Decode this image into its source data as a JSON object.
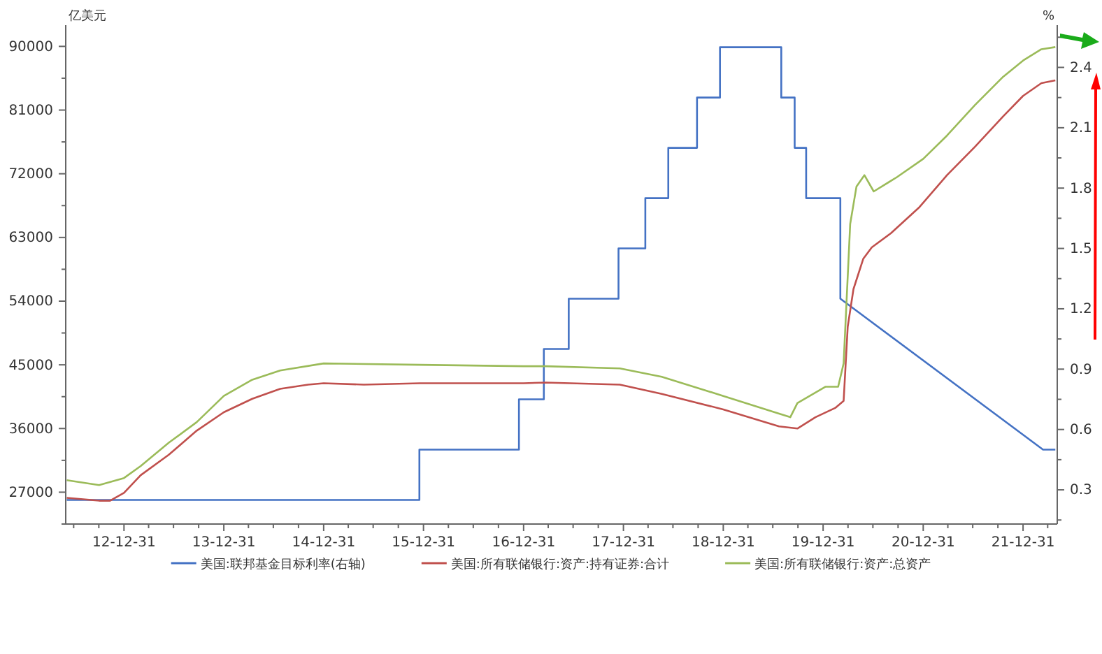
{
  "chart_data": {
    "type": "line",
    "ylabel": "亿美元",
    "y2label": "%",
    "legend": "bottom",
    "grid": false,
    "xlim": [
      "2012-06-01",
      "2022-05-05"
    ],
    "ylim": [
      22500,
      93000
    ],
    "y2lim": [
      0.13,
      2.61
    ],
    "xticks": [
      {
        "value": "2012-06-30",
        "label": null
      },
      {
        "value": "2012-09-30",
        "label": null
      },
      {
        "value": "2012-12-31",
        "label": "12-12-31"
      },
      {
        "value": "2013-03-31",
        "label": null
      },
      {
        "value": "2013-06-30",
        "label": null
      },
      {
        "value": "2013-09-30",
        "label": null
      },
      {
        "value": "2013-12-31",
        "label": "13-12-31"
      },
      {
        "value": "2014-03-31",
        "label": null
      },
      {
        "value": "2014-06-30",
        "label": null
      },
      {
        "value": "2014-09-30",
        "label": null
      },
      {
        "value": "2014-12-31",
        "label": "14-12-31"
      },
      {
        "value": "2015-03-31",
        "label": null
      },
      {
        "value": "2015-06-30",
        "label": null
      },
      {
        "value": "2015-09-30",
        "label": null
      },
      {
        "value": "2015-12-31",
        "label": "15-12-31"
      },
      {
        "value": "2016-03-31",
        "label": null
      },
      {
        "value": "2016-06-30",
        "label": null
      },
      {
        "value": "2016-09-30",
        "label": null
      },
      {
        "value": "2016-12-31",
        "label": "16-12-31"
      },
      {
        "value": "2017-03-31",
        "label": null
      },
      {
        "value": "2017-06-30",
        "label": null
      },
      {
        "value": "2017-09-30",
        "label": null
      },
      {
        "value": "2017-12-31",
        "label": "17-12-31"
      },
      {
        "value": "2018-03-31",
        "label": null
      },
      {
        "value": "2018-06-30",
        "label": null
      },
      {
        "value": "2018-09-30",
        "label": null
      },
      {
        "value": "2018-12-31",
        "label": "18-12-31"
      },
      {
        "value": "2019-03-31",
        "label": null
      },
      {
        "value": "2019-06-30",
        "label": null
      },
      {
        "value": "2019-09-30",
        "label": null
      },
      {
        "value": "2019-12-31",
        "label": "19-12-31"
      },
      {
        "value": "2020-03-31",
        "label": null
      },
      {
        "value": "2020-06-30",
        "label": null
      },
      {
        "value": "2020-09-30",
        "label": null
      },
      {
        "value": "2020-12-31",
        "label": "20-12-31"
      },
      {
        "value": "2021-03-31",
        "label": null
      },
      {
        "value": "2021-06-30",
        "label": null
      },
      {
        "value": "2021-09-30",
        "label": null
      },
      {
        "value": "2021-12-31",
        "label": "21-12-31"
      },
      {
        "value": "2022-03-31",
        "label": null
      }
    ],
    "yticks": [
      {
        "value": 22500,
        "label": null
      },
      27000,
      {
        "value": 31500,
        "label": null
      },
      36000,
      {
        "value": 40500,
        "label": null
      },
      45000,
      {
        "value": 49500,
        "label": null
      },
      54000,
      {
        "value": 58500,
        "label": null
      },
      63000,
      {
        "value": 67500,
        "label": null
      },
      72000,
      {
        "value": 76500,
        "label": null
      },
      81000,
      {
        "value": 85500,
        "label": null
      },
      90000
    ],
    "y2ticks": [
      {
        "value": 0.15,
        "label": null
      },
      0.3,
      {
        "value": 0.45,
        "label": null
      },
      0.6,
      {
        "value": 0.75,
        "label": null
      },
      0.9,
      {
        "value": 1.05,
        "label": null
      },
      1.2,
      {
        "value": 1.35,
        "label": null
      },
      1.5,
      {
        "value": 1.65,
        "label": null
      },
      1.8,
      {
        "value": 1.95,
        "label": null
      },
      2.1,
      {
        "value": 2.25,
        "label": null
      },
      2.4,
      {
        "value": 2.55,
        "label": null
      }
    ],
    "series": [
      {
        "name": "美国:联邦基金目标利率(右轴)",
        "color": "#4472c4",
        "axis": "y2",
        "x": [
          "2012-06-05",
          "2015-12-16",
          "2015-12-16",
          "2016-12-14",
          "2016-12-14",
          "2017-03-15",
          "2017-03-15",
          "2017-06-14",
          "2017-06-14",
          "2017-12-13",
          "2017-12-13",
          "2018-03-21",
          "2018-03-21",
          "2018-06-13",
          "2018-06-13",
          "2018-09-26",
          "2018-09-26",
          "2018-12-19",
          "2018-12-19",
          "2019-07-31",
          "2019-07-31",
          "2019-09-18",
          "2019-09-18",
          "2019-10-30",
          "2019-10-30",
          "2020-03-03",
          "2020-03-03",
          "2022-03-14",
          "2022-04-28"
        ],
        "values": [
          0.25,
          0.25,
          0.5,
          0.5,
          0.75,
          0.75,
          1.0,
          1.0,
          1.25,
          1.25,
          1.5,
          1.5,
          1.75,
          1.75,
          2.0,
          2.0,
          2.25,
          2.25,
          2.5,
          2.5,
          2.25,
          2.25,
          2.0,
          2.0,
          1.75,
          1.75,
          1.25,
          0.5,
          0.5
        ]
      },
      {
        "name": "美国:所有联储银行:资产:持有证券:合计",
        "color": "#c0504d",
        "x": [
          "2012-06-05",
          "2012-10-01",
          "2012-11-10",
          "2012-12-31",
          "2013-03-02",
          "2013-06-13",
          "2013-09-23",
          "2013-12-31",
          "2014-04-14",
          "2014-07-25",
          "2014-11-04",
          "2014-12-31",
          "2015-05-27",
          "2015-12-18",
          "2016-12-31",
          "2017-03-22",
          "2017-12-18",
          "2018-05-20",
          "2018-12-31",
          "2019-07-23",
          "2019-09-28",
          "2019-12-03",
          "2020-02-13",
          "2020-03-15",
          "2020-03-30",
          "2020-04-20",
          "2020-05-26",
          "2020-06-26",
          "2020-09-04",
          "2020-12-15",
          "2021-03-28",
          "2021-07-08",
          "2021-10-19",
          "2021-12-31",
          "2022-03-08",
          "2022-04-28"
        ],
        "values": [
          26200,
          25800,
          25800,
          26900,
          29400,
          32300,
          35700,
          38300,
          40200,
          41600,
          42200,
          42400,
          42200,
          42400,
          42400,
          42500,
          42200,
          40900,
          38700,
          36300,
          36000,
          37600,
          38900,
          39900,
          50400,
          55700,
          60000,
          61600,
          63600,
          67200,
          71800,
          75800,
          80100,
          83000,
          84800,
          85200
        ]
      },
      {
        "name": "美国:所有联储银行:资产:总资产",
        "color": "#9bbb59",
        "x": [
          "2012-06-05",
          "2012-10-01",
          "2012-12-31",
          "2013-03-02",
          "2013-06-13",
          "2013-09-23",
          "2013-12-31",
          "2014-04-14",
          "2014-07-25",
          "2014-12-31",
          "2015-12-18",
          "2016-12-31",
          "2017-03-22",
          "2017-12-18",
          "2018-05-20",
          "2018-12-31",
          "2019-07-23",
          "2019-09-02",
          "2019-09-28",
          "2020-01-08",
          "2020-02-24",
          "2020-03-15",
          "2020-04-08",
          "2020-05-01",
          "2020-05-30",
          "2020-07-03",
          "2020-09-25",
          "2020-12-31",
          "2021-03-28",
          "2021-07-08",
          "2021-10-19",
          "2021-12-31",
          "2022-03-08",
          "2022-04-28"
        ],
        "values": [
          28700,
          28000,
          29000,
          30700,
          34000,
          36900,
          40600,
          42900,
          44200,
          45200,
          45000,
          44800,
          44800,
          44500,
          43300,
          40600,
          38100,
          37600,
          39600,
          41900,
          41900,
          45200,
          64900,
          70200,
          71800,
          69500,
          71500,
          74100,
          77400,
          81700,
          85700,
          88000,
          89600,
          89900
        ]
      }
    ]
  }
}
